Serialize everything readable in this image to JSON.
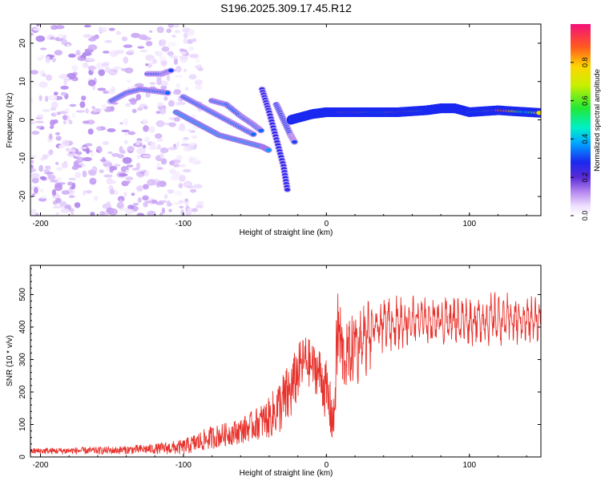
{
  "title": "S196.2025.309.17.45.R12",
  "colors": {
    "snr_line": "#e8332d",
    "axis": "#000000",
    "background": "#ffffff"
  },
  "chart_data": [
    {
      "type": "heatmap",
      "name": "spectrogram",
      "xlabel": "Height of straight line (km)",
      "ylabel": "Frequency (Hz)",
      "xlim": [
        -207,
        150
      ],
      "ylim": [
        -25,
        25
      ],
      "xticks": [
        -200,
        -100,
        0,
        100
      ],
      "xtick_labels": [
        "-200",
        "-100",
        "0",
        "100"
      ],
      "yticks": [
        -20,
        -10,
        0,
        10,
        20
      ],
      "ytick_labels": [
        "-20",
        "-10",
        "0",
        "10",
        "20"
      ],
      "colorbar": {
        "label": "Normalized spectral amplitude",
        "range": [
          0,
          1
        ],
        "ticks": [
          0,
          0.2,
          0.4,
          0.6,
          0.8
        ],
        "tick_labels": [
          "0.0",
          "0.2",
          "0.4",
          "0.6",
          "0.8"
        ]
      },
      "features": [
        {
          "segment": "noise",
          "x_range": [
            -207,
            -100
          ],
          "freq_range": [
            -25,
            25
          ],
          "amplitude": 0.1
        },
        {
          "segment": "tone-line-1",
          "x": [
            -150,
            -140,
            -130,
            -120,
            -110
          ],
          "freq": [
            5,
            7,
            8,
            7.5,
            7
          ],
          "amplitude": 0.22
        },
        {
          "segment": "tone-line-2",
          "x": [
            -125,
            -115,
            -108
          ],
          "freq": [
            12,
            12,
            13
          ],
          "amplitude": 0.2
        },
        {
          "segment": "descending-1",
          "x": [
            -105,
            -95,
            -85,
            -75,
            -65,
            -55,
            -45,
            -40
          ],
          "freq": [
            2,
            0,
            -2,
            -4,
            -5,
            -6,
            -7,
            -8
          ],
          "amplitude": 0.25
        },
        {
          "segment": "descending-2",
          "x": [
            -100,
            -90,
            -80,
            -70,
            -60,
            -50
          ],
          "freq": [
            6,
            4,
            2,
            0,
            -2,
            -4
          ],
          "amplitude": 0.22
        },
        {
          "segment": "descending-3",
          "x": [
            -80,
            -70,
            -60,
            -52,
            -45
          ],
          "freq": [
            5,
            4,
            1,
            -1,
            -3
          ],
          "amplitude": 0.22
        },
        {
          "segment": "steep-streak",
          "x": [
            -45,
            -40,
            -35,
            -30,
            -27
          ],
          "freq": [
            8,
            2,
            -5,
            -12,
            -19
          ],
          "amplitude": 0.18
        },
        {
          "segment": "steep-streak-2",
          "x": [
            -35,
            -30,
            -25,
            -22
          ],
          "freq": [
            4,
            0,
            -4,
            -6
          ],
          "amplitude": 0.2
        },
        {
          "segment": "carrier",
          "x": [
            -25,
            -10,
            0,
            10,
            30,
            50,
            70,
            80,
            90,
            100,
            120,
            150
          ],
          "freq": [
            0,
            1.5,
            2,
            2,
            2,
            2,
            2.5,
            3,
            3,
            2,
            2.5,
            1.8
          ],
          "amplitude": 0.6
        }
      ]
    },
    {
      "type": "line",
      "name": "snr",
      "xlabel": "Height of straight line (km)",
      "ylabel": "SNR (10 * v/v)",
      "xlim": [
        -207,
        150
      ],
      "ylim": [
        0,
        590
      ],
      "xticks": [
        -200,
        -100,
        0,
        100
      ],
      "xtick_labels": [
        "-200",
        "-100",
        "0",
        "100"
      ],
      "yticks": [
        0,
        100,
        200,
        300,
        400,
        500
      ],
      "ytick_labels": [
        "0",
        "100",
        "200",
        "300",
        "400",
        "500"
      ],
      "envelope_x": [
        -207,
        -150,
        -120,
        -100,
        -90,
        -80,
        -70,
        -60,
        -50,
        -40,
        -30,
        -25,
        -20,
        -15,
        -10,
        -5,
        0,
        5,
        8,
        12,
        20,
        30,
        40,
        60,
        80,
        100,
        120,
        150
      ],
      "envelope_y": [
        18,
        20,
        25,
        30,
        45,
        60,
        70,
        80,
        100,
        120,
        170,
        200,
        260,
        300,
        280,
        260,
        200,
        100,
        400,
        300,
        340,
        380,
        410,
        420,
        420,
        420,
        425,
        420
      ],
      "variation_y": [
        12,
        15,
        20,
        30,
        40,
        45,
        45,
        50,
        60,
        80,
        120,
        120,
        110,
        100,
        90,
        100,
        120,
        100,
        200,
        120,
        140,
        130,
        100,
        90,
        90,
        85,
        90,
        90
      ]
    }
  ]
}
